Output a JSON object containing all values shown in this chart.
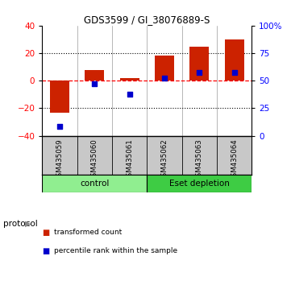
{
  "title": "GDS3599 / GI_38076889-S",
  "samples": [
    "GSM435059",
    "GSM435060",
    "GSM435061",
    "GSM435062",
    "GSM435063",
    "GSM435064"
  ],
  "red_bars": [
    -23,
    8,
    2,
    18,
    25,
    30
  ],
  "blue_markers_left_axis": [
    -33,
    -2,
    -10,
    2,
    6,
    6
  ],
  "ylim_left": [
    -40,
    40
  ],
  "ylim_right": [
    0,
    100
  ],
  "yticks_left": [
    -40,
    -20,
    0,
    20,
    40
  ],
  "yticks_right": [
    0,
    25,
    50,
    75,
    100
  ],
  "ytick_labels_right": [
    "0",
    "25",
    "50",
    "75",
    "100%"
  ],
  "hlines_dotted": [
    -20,
    20
  ],
  "hline_dashed": 0,
  "groups": [
    {
      "label": "control",
      "span": [
        0,
        3
      ],
      "color": "#90EE90"
    },
    {
      "label": "Eset depletion",
      "span": [
        3,
        6
      ],
      "color": "#3ECC44"
    }
  ],
  "bar_color": "#CC2200",
  "marker_color": "#0000CC",
  "bg_color": "#FFFFFF",
  "gray_bg": "#C8C8C8",
  "group_label": "protocol",
  "legend_items": [
    {
      "color": "#CC2200",
      "label": "transformed count"
    },
    {
      "color": "#0000CC",
      "label": "percentile rank within the sample"
    }
  ],
  "bar_width": 0.55
}
